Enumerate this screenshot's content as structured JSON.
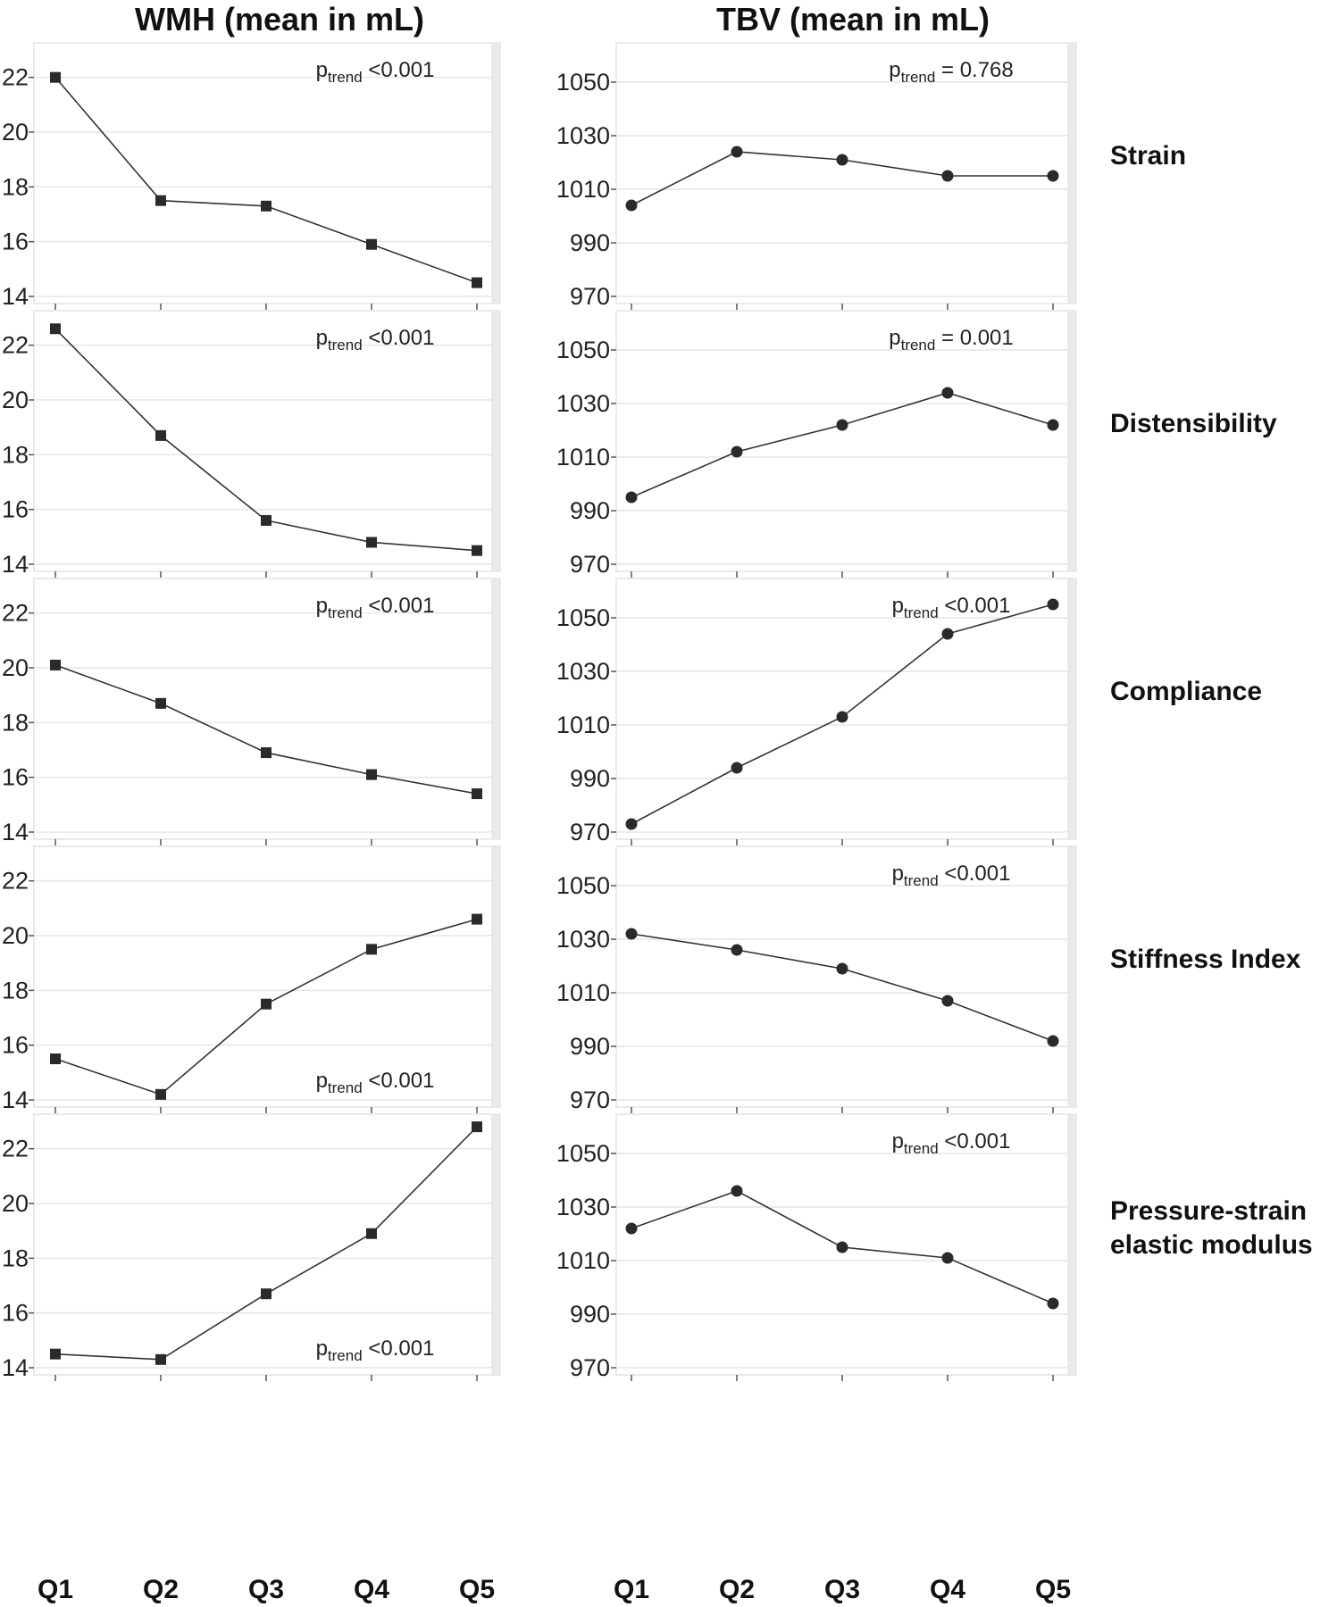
{
  "titles": {
    "wmh": "WMH (mean in mL)",
    "tbv": "TBV (mean in mL)"
  },
  "row_labels": [
    [
      "Strain"
    ],
    [
      "Distensibility"
    ],
    [
      "Compliance"
    ],
    [
      "Stiffness Index"
    ],
    [
      "Pressure-strain",
      "elastic modulus"
    ]
  ],
  "x_ticks": [
    "Q1",
    "Q2",
    "Q3",
    "Q4",
    "Q5"
  ],
  "colors": {
    "panel_bg": "#ffffff",
    "panel_border": "#e3e3e3",
    "right_strip": "#e9e9e9",
    "gridline": "#e6e6e6",
    "series_line": "#333333",
    "marker": "#2a2a2a"
  },
  "chart_data": [
    {
      "type": "line",
      "marker": "square",
      "column": "WMH",
      "row": "Strain",
      "categories": [
        "Q1",
        "Q2",
        "Q3",
        "Q4",
        "Q5"
      ],
      "values": [
        22.0,
        17.5,
        17.3,
        15.9,
        14.5
      ],
      "ylim": [
        14,
        23
      ],
      "yticks": [
        14,
        16,
        18,
        20,
        22
      ],
      "grid": true,
      "annotation": {
        "p": "p",
        "sub": "trend",
        "value": " <0.001",
        "place": "top"
      }
    },
    {
      "type": "line",
      "marker": "circle",
      "column": "TBV",
      "row": "Strain",
      "categories": [
        "Q1",
        "Q2",
        "Q3",
        "Q4",
        "Q5"
      ],
      "values": [
        1004,
        1024,
        1021,
        1015,
        1015
      ],
      "ylim": [
        970,
        1062
      ],
      "yticks": [
        970,
        990,
        1010,
        1030,
        1050
      ],
      "grid": true,
      "annotation": {
        "p": "p",
        "sub": "trend",
        "value": " = 0.768",
        "place": "top"
      }
    },
    {
      "type": "line",
      "marker": "square",
      "column": "WMH",
      "row": "Distensibility",
      "categories": [
        "Q1",
        "Q2",
        "Q3",
        "Q4",
        "Q5"
      ],
      "values": [
        22.6,
        18.7,
        15.6,
        14.8,
        14.5
      ],
      "ylim": [
        14,
        23
      ],
      "yticks": [
        14,
        16,
        18,
        20,
        22
      ],
      "grid": true,
      "annotation": {
        "p": "p",
        "sub": "trend",
        "value": " <0.001",
        "place": "top"
      }
    },
    {
      "type": "line",
      "marker": "circle",
      "column": "TBV",
      "row": "Distensibility",
      "categories": [
        "Q1",
        "Q2",
        "Q3",
        "Q4",
        "Q5"
      ],
      "values": [
        995,
        1012,
        1022,
        1034,
        1022
      ],
      "ylim": [
        970,
        1062
      ],
      "yticks": [
        970,
        990,
        1010,
        1030,
        1050
      ],
      "grid": true,
      "annotation": {
        "p": "p",
        "sub": "trend",
        "value": " = 0.001",
        "place": "top"
      }
    },
    {
      "type": "line",
      "marker": "square",
      "column": "WMH",
      "row": "Compliance",
      "categories": [
        "Q1",
        "Q2",
        "Q3",
        "Q4",
        "Q5"
      ],
      "values": [
        20.1,
        18.7,
        16.9,
        16.1,
        15.4
      ],
      "ylim": [
        14,
        23
      ],
      "yticks": [
        14,
        16,
        18,
        20,
        22
      ],
      "grid": true,
      "annotation": {
        "p": "p",
        "sub": "trend",
        "value": " <0.001",
        "place": "top"
      }
    },
    {
      "type": "line",
      "marker": "circle",
      "column": "TBV",
      "row": "Compliance",
      "categories": [
        "Q1",
        "Q2",
        "Q3",
        "Q4",
        "Q5"
      ],
      "values": [
        973,
        994,
        1013,
        1044,
        1055
      ],
      "ylim": [
        970,
        1062
      ],
      "yticks": [
        970,
        990,
        1010,
        1030,
        1050
      ],
      "grid": true,
      "annotation": {
        "p": "p",
        "sub": "trend",
        "value": " <0.001",
        "place": "top"
      }
    },
    {
      "type": "line",
      "marker": "square",
      "column": "WMH",
      "row": "Stiffness Index",
      "categories": [
        "Q1",
        "Q2",
        "Q3",
        "Q4",
        "Q5"
      ],
      "values": [
        15.5,
        14.2,
        17.5,
        19.5,
        20.6
      ],
      "ylim": [
        14,
        23
      ],
      "yticks": [
        14,
        16,
        18,
        20,
        22
      ],
      "grid": true,
      "annotation": {
        "p": "p",
        "sub": "trend",
        "value": " <0.001",
        "place": "bottom"
      }
    },
    {
      "type": "line",
      "marker": "circle",
      "column": "TBV",
      "row": "Stiffness Index",
      "categories": [
        "Q1",
        "Q2",
        "Q3",
        "Q4",
        "Q5"
      ],
      "values": [
        1032,
        1026,
        1019,
        1007,
        992
      ],
      "ylim": [
        970,
        1062
      ],
      "yticks": [
        970,
        990,
        1010,
        1030,
        1050
      ],
      "grid": true,
      "annotation": {
        "p": "p",
        "sub": "trend",
        "value": " <0.001",
        "place": "top"
      }
    },
    {
      "type": "line",
      "marker": "square",
      "column": "WMH",
      "row": "Pressure-strain elastic modulus",
      "categories": [
        "Q1",
        "Q2",
        "Q3",
        "Q4",
        "Q5"
      ],
      "values": [
        14.5,
        14.3,
        16.7,
        18.9,
        22.8
      ],
      "ylim": [
        14,
        23
      ],
      "yticks": [
        14,
        16,
        18,
        20,
        22
      ],
      "grid": true,
      "annotation": {
        "p": "p",
        "sub": "trend",
        "value": " <0.001",
        "place": "bottom"
      }
    },
    {
      "type": "line",
      "marker": "circle",
      "column": "TBV",
      "row": "Pressure-strain elastic modulus",
      "categories": [
        "Q1",
        "Q2",
        "Q3",
        "Q4",
        "Q5"
      ],
      "values": [
        1022,
        1036,
        1015,
        1011,
        994
      ],
      "ylim": [
        970,
        1062
      ],
      "yticks": [
        970,
        990,
        1010,
        1030,
        1050
      ],
      "grid": true,
      "annotation": {
        "p": "p",
        "sub": "trend",
        "value": " <0.001",
        "place": "top"
      }
    }
  ]
}
